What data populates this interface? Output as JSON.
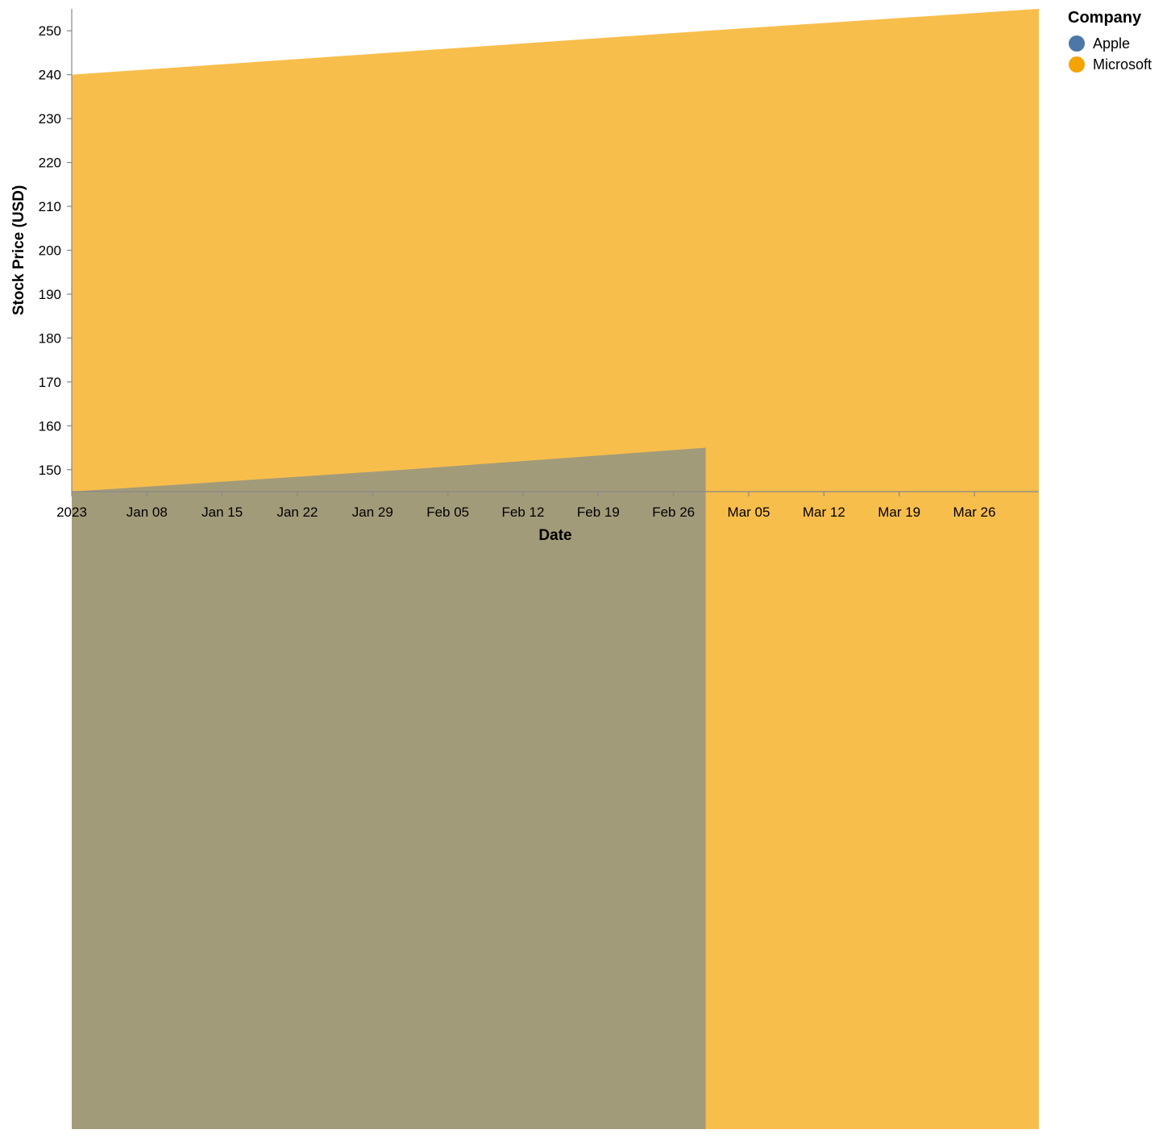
{
  "colors": {
    "Apple": "#4c78a8",
    "Microsoft": "#f5a300",
    "axis": "#888888"
  },
  "chart_data": {
    "type": "area",
    "title": "",
    "xlabel": "Date",
    "ylabel": "Stock Price (USD)",
    "x_type": "date",
    "xlim": [
      "2023-01-01",
      "2023-04-01"
    ],
    "ylim": [
      145,
      255
    ],
    "y_ticks": [
      150,
      160,
      170,
      180,
      190,
      200,
      210,
      220,
      230,
      240,
      250
    ],
    "x_ticks": [
      {
        "date": "2023-01-01",
        "label": "2023"
      },
      {
        "date": "2023-01-08",
        "label": "Jan 08"
      },
      {
        "date": "2023-01-15",
        "label": "Jan 15"
      },
      {
        "date": "2023-01-22",
        "label": "Jan 22"
      },
      {
        "date": "2023-01-29",
        "label": "Jan 29"
      },
      {
        "date": "2023-02-05",
        "label": "Feb 05"
      },
      {
        "date": "2023-02-12",
        "label": "Feb 12"
      },
      {
        "date": "2023-02-19",
        "label": "Feb 19"
      },
      {
        "date": "2023-02-26",
        "label": "Feb 26"
      },
      {
        "date": "2023-03-05",
        "label": "Mar 05"
      },
      {
        "date": "2023-03-12",
        "label": "Mar 12"
      },
      {
        "date": "2023-03-19",
        "label": "Mar 19"
      },
      {
        "date": "2023-03-26",
        "label": "Mar 26"
      }
    ],
    "grid": false,
    "legend": {
      "title": "Company",
      "placement": "right"
    },
    "series": [
      {
        "name": "Microsoft",
        "points": [
          {
            "x": "2023-01-01",
            "y": 240
          },
          {
            "x": "2023-03-01",
            "y": 250
          },
          {
            "x": "2023-04-01",
            "y": 255
          }
        ]
      },
      {
        "name": "Apple",
        "points": [
          {
            "x": "2023-01-01",
            "y": 145
          },
          {
            "x": "2023-02-01",
            "y": 150
          },
          {
            "x": "2023-03-01",
            "y": 155
          }
        ]
      }
    ]
  }
}
